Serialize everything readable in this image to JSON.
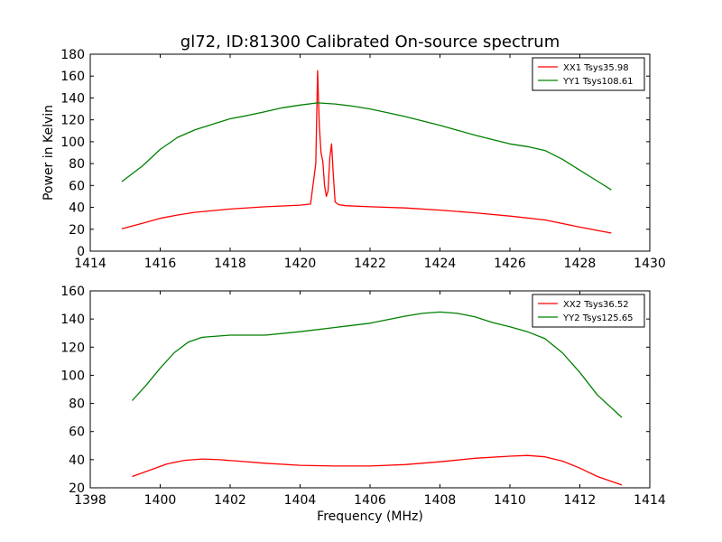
{
  "chart_data": [
    {
      "type": "line",
      "title": "gl72, ID:81300 Calibrated On-source spectrum",
      "xlabel": "",
      "ylabel": "Power in Kelvin",
      "xlim": [
        1414,
        1430
      ],
      "ylim": [
        0,
        180
      ],
      "xticks": [
        1414,
        1416,
        1418,
        1420,
        1422,
        1424,
        1426,
        1428,
        1430
      ],
      "yticks": [
        0,
        20,
        40,
        60,
        80,
        100,
        120,
        140,
        160,
        180
      ],
      "legend_position": "top-right",
      "grid": false,
      "series": [
        {
          "name": "XX1 Tsys35.98",
          "color": "#ff0000",
          "x": [
            1414.9,
            1415.5,
            1416,
            1416.5,
            1417,
            1418,
            1419,
            1420,
            1420.3,
            1420.45,
            1420.5,
            1420.55,
            1420.6,
            1420.65,
            1420.7,
            1420.75,
            1420.8,
            1420.85,
            1420.9,
            1420.95,
            1421.0,
            1421.1,
            1421.3,
            1422,
            1423,
            1424,
            1425,
            1426,
            1427,
            1428,
            1428.9
          ],
          "y": [
            20.5,
            25.5,
            30,
            33,
            35.5,
            38.5,
            40.5,
            42,
            43,
            80,
            165,
            115,
            90,
            82,
            60,
            50,
            55,
            85,
            98,
            70,
            45,
            42.5,
            41.5,
            40.5,
            39.5,
            37.5,
            35,
            32,
            28.5,
            22,
            16.5
          ]
        },
        {
          "name": "YY1 Tsys108.61",
          "color": "#008000",
          "x": [
            1414.9,
            1415.5,
            1416,
            1416.5,
            1417,
            1417.5,
            1418,
            1418.5,
            1419,
            1419.5,
            1420,
            1420.5,
            1421,
            1421.5,
            1422,
            1422.5,
            1423,
            1423.5,
            1424,
            1424.5,
            1425,
            1425.5,
            1426,
            1426.5,
            1427,
            1427.5,
            1428,
            1428.5,
            1428.9
          ],
          "y": [
            63.5,
            78,
            93,
            104,
            111,
            116,
            121,
            124,
            127.5,
            131,
            133.5,
            135.5,
            134.5,
            132.5,
            130,
            126.5,
            123,
            119,
            115,
            110.5,
            106,
            102,
            98,
            95.5,
            92,
            84,
            74,
            64,
            56
          ]
        }
      ]
    },
    {
      "type": "line",
      "title": "",
      "xlabel": "Frequency (MHz)",
      "ylabel": "",
      "xlim": [
        1398,
        1414
      ],
      "ylim": [
        20,
        160
      ],
      "xticks": [
        1398,
        1400,
        1402,
        1404,
        1406,
        1408,
        1410,
        1412,
        1414
      ],
      "yticks": [
        20,
        40,
        60,
        80,
        100,
        120,
        140,
        160
      ],
      "legend_position": "top-right",
      "grid": false,
      "series": [
        {
          "name": "XX2 Tsys36.52",
          "color": "#ff0000",
          "x": [
            1399.2,
            1399.7,
            1400.2,
            1400.7,
            1401.2,
            1401.7,
            1402.2,
            1403,
            1404,
            1405,
            1406,
            1407,
            1408,
            1409,
            1410,
            1410.5,
            1411,
            1411.5,
            1412,
            1412.5,
            1413.2
          ],
          "y": [
            28,
            32.5,
            37,
            39.5,
            40.5,
            40,
            39,
            37.5,
            36,
            35.5,
            35.5,
            36.5,
            38.5,
            41,
            42.5,
            43,
            42,
            39,
            34,
            28,
            22
          ]
        },
        {
          "name": "YY2 Tsys125.65",
          "color": "#008000",
          "x": [
            1399.2,
            1399.6,
            1400,
            1400.4,
            1400.8,
            1401.2,
            1402,
            1403,
            1404,
            1405,
            1406,
            1406.5,
            1407,
            1407.5,
            1408,
            1408.5,
            1409,
            1409.5,
            1410,
            1410.5,
            1411,
            1411.5,
            1412,
            1412.5,
            1413.2
          ],
          "y": [
            82,
            93,
            105,
            116,
            123.5,
            127,
            128.5,
            128.5,
            131,
            134,
            137,
            139.5,
            142,
            144,
            145,
            144,
            141.5,
            137.5,
            134.5,
            131,
            126,
            116,
            102,
            86,
            70
          ]
        }
      ]
    }
  ]
}
